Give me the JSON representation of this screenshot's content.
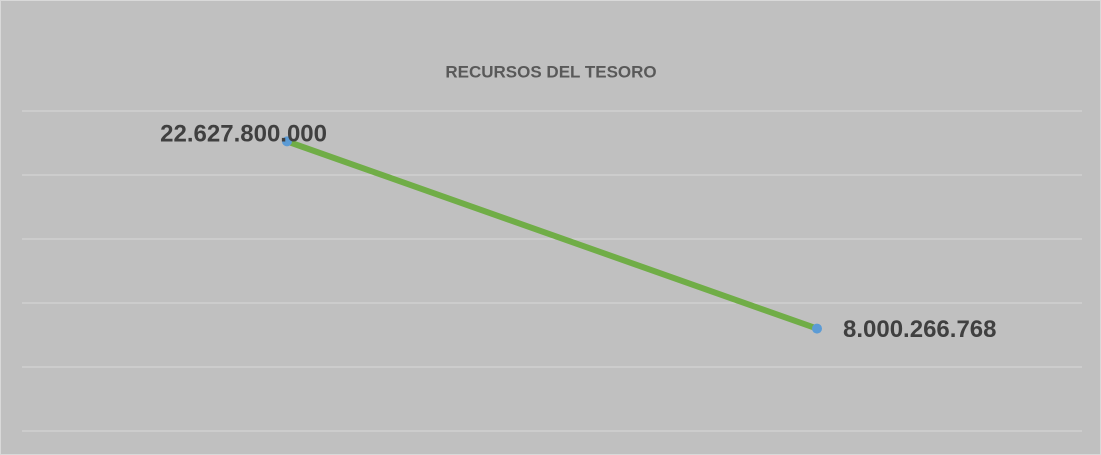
{
  "chart_data": {
    "type": "line",
    "title": "RECURSOS DEL TESORO",
    "categories": [
      null,
      null
    ],
    "series": [
      {
        "color": "#70ad47",
        "marker_color": "#5b9bd5",
        "values": [
          22627800000,
          8000266768
        ],
        "value_labels": [
          "22.627.800.000",
          "8.000.266.768"
        ]
      }
    ],
    "ylim": [
      0,
      25000000000
    ],
    "yticks": [
      0,
      5000000000,
      10000000000,
      15000000000,
      20000000000,
      25000000000
    ],
    "grid": true
  }
}
